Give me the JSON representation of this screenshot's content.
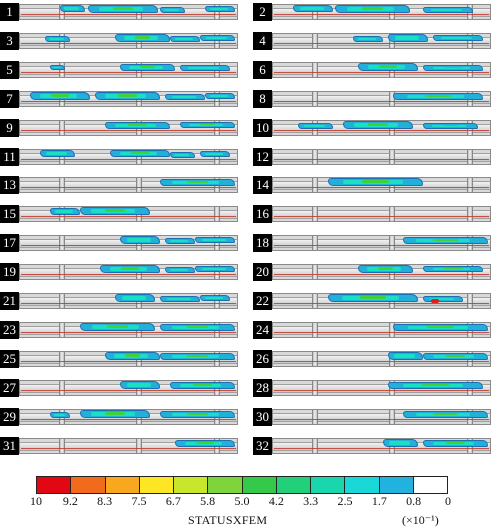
{
  "panels": [
    {
      "label": "1"
    },
    {
      "label": "2"
    },
    {
      "label": "3"
    },
    {
      "label": "4"
    },
    {
      "label": "5"
    },
    {
      "label": "6"
    },
    {
      "label": "7"
    },
    {
      "label": "8"
    },
    {
      "label": "9"
    },
    {
      "label": "10"
    },
    {
      "label": "11"
    },
    {
      "label": "12"
    },
    {
      "label": "13"
    },
    {
      "label": "14"
    },
    {
      "label": "15"
    },
    {
      "label": "16"
    },
    {
      "label": "17"
    },
    {
      "label": "18"
    },
    {
      "label": "19"
    },
    {
      "label": "20"
    },
    {
      "label": "21"
    },
    {
      "label": "22"
    },
    {
      "label": "23"
    },
    {
      "label": "24"
    },
    {
      "label": "25"
    },
    {
      "label": "26"
    },
    {
      "label": "27"
    },
    {
      "label": "28"
    },
    {
      "label": "29"
    },
    {
      "label": "30"
    },
    {
      "label": "31"
    },
    {
      "label": "32"
    }
  ],
  "legend": {
    "title": "STATUSXFEM",
    "unit": "(×10⁻¹)",
    "ticks": [
      "10",
      "9.2",
      "8.3",
      "7.5",
      "6.7",
      "5.8",
      "5.0",
      "4.2",
      "3.3",
      "2.5",
      "1.7",
      "0.8",
      "0"
    ],
    "colors": [
      "#e30613",
      "#f26a1b",
      "#f7a81e",
      "#fde725",
      "#c8e62b",
      "#7ed43a",
      "#35c94a",
      "#22d07a",
      "#19d6ad",
      "#1ad8d8",
      "#22b2e0",
      "#ffffff"
    ]
  }
}
